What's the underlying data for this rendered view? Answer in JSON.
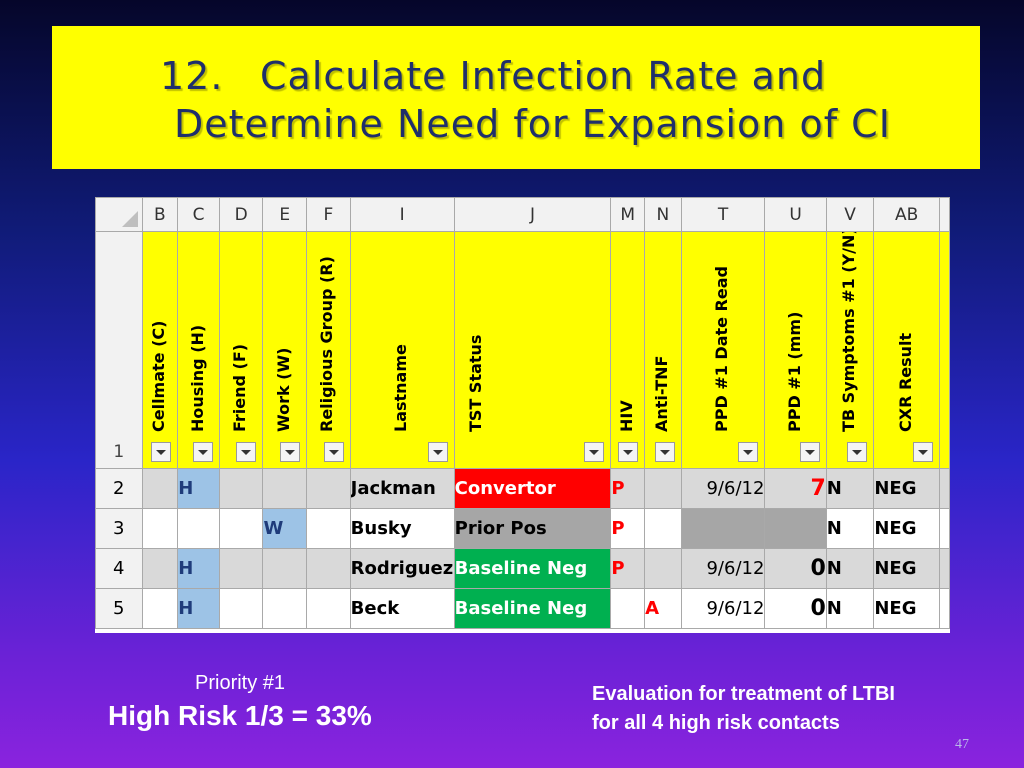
{
  "title": {
    "number": "12.",
    "line1": "Calculate Infection Rate and",
    "line2": "Determine Need for Expansion of CI"
  },
  "spreadsheet": {
    "column_letters": [
      "B",
      "C",
      "D",
      "E",
      "F",
      "I",
      "J",
      "M",
      "N",
      "T",
      "U",
      "V",
      "AB"
    ],
    "header_row_number": "1",
    "headers": [
      "Cellmate  (C)",
      "Housing (H)",
      "Friend (F)",
      "Work (W)",
      "Religious Group (R)",
      "Lastname",
      "TST Status",
      "HIV",
      "Anti-TNF",
      "PPD #1 Date Read",
      "PPD #1  (mm)",
      "TB Symptoms #1 (Y/N)",
      "CXR Result"
    ],
    "rows": [
      {
        "num": "2",
        "B": "",
        "C": "H",
        "D": "",
        "E": "",
        "F": "",
        "I": "Jackman",
        "J": "Convertor",
        "M": "P",
        "N": "",
        "T": "9/6/12",
        "U": "7",
        "V": "N",
        "AB": "NEG"
      },
      {
        "num": "3",
        "B": "",
        "C": "",
        "D": "",
        "E": "W",
        "F": "",
        "I": "Busky",
        "J": "Prior Pos",
        "M": "P",
        "N": "",
        "T": "",
        "U": "",
        "V": "N",
        "AB": "NEG"
      },
      {
        "num": "4",
        "B": "",
        "C": "H",
        "D": "",
        "E": "",
        "F": "",
        "I": "Rodriguez",
        "J": "Baseline Neg",
        "M": "P",
        "N": "",
        "T": "9/6/12",
        "U": "0",
        "V": "N",
        "AB": "NEG"
      },
      {
        "num": "5",
        "B": "",
        "C": "H",
        "D": "",
        "E": "",
        "F": "",
        "I": "Beck",
        "J": "Baseline Neg",
        "M": "",
        "N": "A",
        "T": "9/6/12",
        "U": "0",
        "V": "N",
        "AB": "NEG"
      }
    ]
  },
  "notes": {
    "priority": "Priority #1",
    "high_risk": "High Risk  1/3 = 33%",
    "evaluation_line1": "Evaluation for treatment of LTBI",
    "evaluation_line2": "for all 4 high risk contacts"
  },
  "page_number": "47",
  "colors": {
    "title_bg": "#ffff00",
    "title_text": "#1f2f6b",
    "header_yellow": "#ffff00",
    "convertor_red": "#ff0000",
    "baseline_green": "#00b050",
    "housing_blue": "#9dc3e6"
  }
}
